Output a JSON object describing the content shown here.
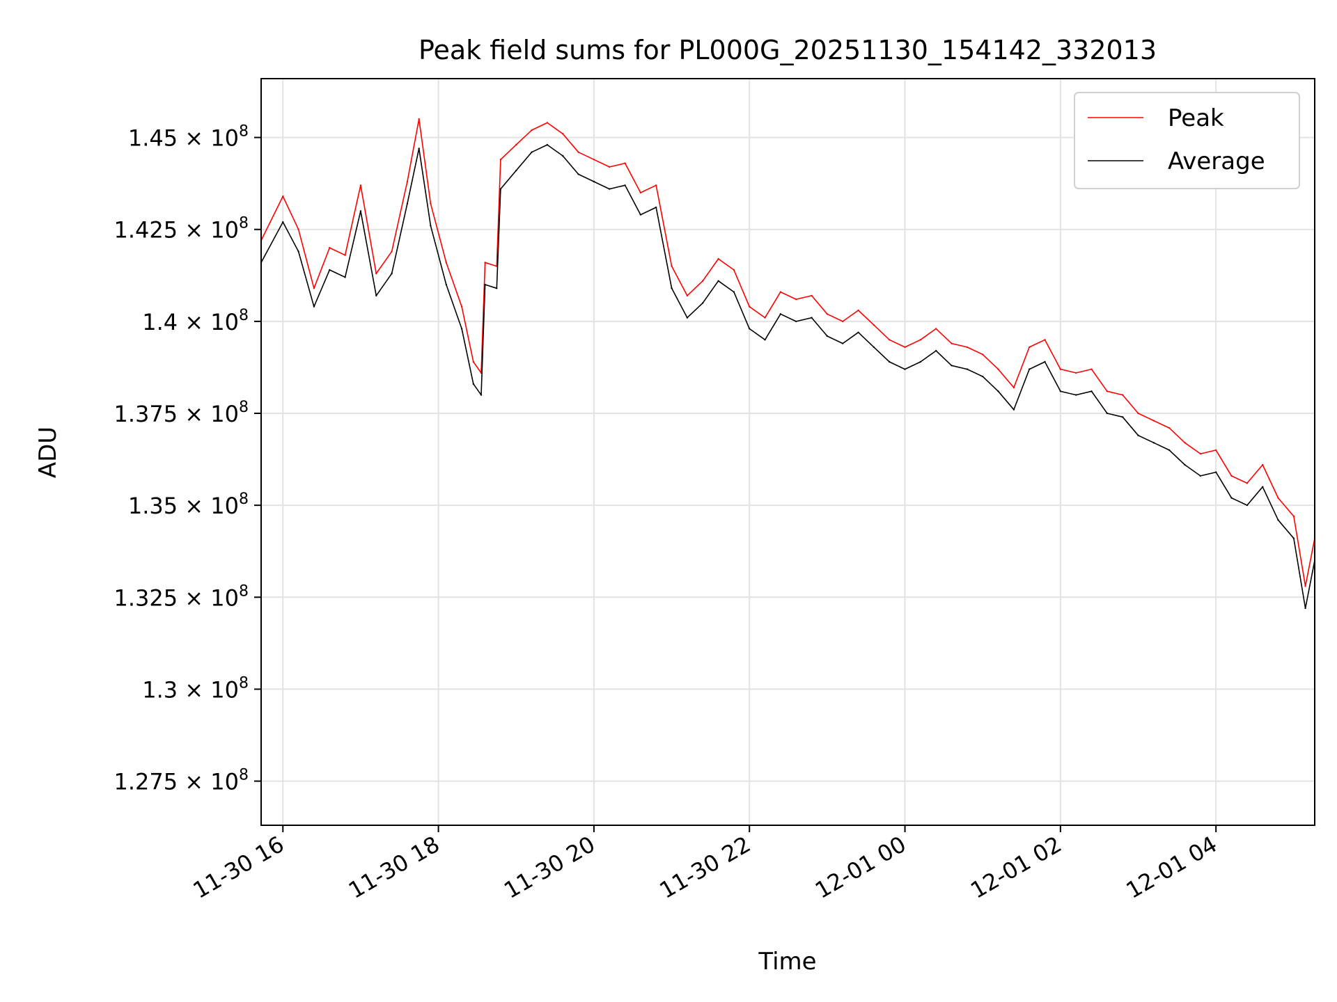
{
  "chart_data": {
    "type": "line",
    "title": "Peak field sums for PL000G_20251130_154142_332013",
    "xlabel": "Time",
    "ylabel": "ADU",
    "x_unit": "hours since 2025-11-30 00:00",
    "xlim": [
      15.72,
      29.27
    ],
    "ylim": [
      126300000,
      146600000
    ],
    "grid": true,
    "legend_position": "upper right",
    "x_ticks": [
      {
        "value": 16,
        "label": "11-30 16"
      },
      {
        "value": 18,
        "label": "11-30 18"
      },
      {
        "value": 20,
        "label": "11-30 20"
      },
      {
        "value": 22,
        "label": "11-30 22"
      },
      {
        "value": 24,
        "label": "12-01 00"
      },
      {
        "value": 26,
        "label": "12-01 02"
      },
      {
        "value": 28,
        "label": "12-01 04"
      }
    ],
    "y_ticks": [
      {
        "value": 127500000,
        "mantissa": "1.275",
        "base": "10",
        "exp": "8"
      },
      {
        "value": 130000000,
        "mantissa": "1.3",
        "base": "10",
        "exp": "8"
      },
      {
        "value": 132500000,
        "mantissa": "1.325",
        "base": "10",
        "exp": "8"
      },
      {
        "value": 135000000,
        "mantissa": "1.35",
        "base": "10",
        "exp": "8"
      },
      {
        "value": 137500000,
        "mantissa": "1.375",
        "base": "10",
        "exp": "8"
      },
      {
        "value": 140000000,
        "mantissa": "1.4",
        "base": "10",
        "exp": "8"
      },
      {
        "value": 142500000,
        "mantissa": "1.425",
        "base": "10",
        "exp": "8"
      },
      {
        "value": 145000000,
        "mantissa": "1.45",
        "base": "10",
        "exp": "8"
      }
    ],
    "series": [
      {
        "name": "Peak",
        "color": "#ff0000",
        "x": [
          15.72,
          16.0,
          16.2,
          16.4,
          16.6,
          16.8,
          17.0,
          17.2,
          17.4,
          17.6,
          17.75,
          17.9,
          18.1,
          18.3,
          18.45,
          18.55,
          18.6,
          18.75,
          18.8,
          19.0,
          19.2,
          19.4,
          19.6,
          19.8,
          20.0,
          20.2,
          20.4,
          20.6,
          20.8,
          21.0,
          21.2,
          21.4,
          21.6,
          21.8,
          22.0,
          22.2,
          22.4,
          22.6,
          22.8,
          23.0,
          23.2,
          23.4,
          23.6,
          23.8,
          24.0,
          24.2,
          24.4,
          24.6,
          24.8,
          25.0,
          25.2,
          25.4,
          25.6,
          25.8,
          26.0,
          26.2,
          26.4,
          26.6,
          26.8,
          27.0,
          27.2,
          27.4,
          27.6,
          27.8,
          28.0,
          28.2,
          28.4,
          28.6,
          28.8,
          29.0,
          29.15,
          29.27
        ],
        "values": [
          142200000,
          143400000,
          142500000,
          140900000,
          142000000,
          141800000,
          143700000,
          141300000,
          141900000,
          143800000,
          145500000,
          143200000,
          141600000,
          140400000,
          138900000,
          138600000,
          141600000,
          141500000,
          144400000,
          144800000,
          145200000,
          145400000,
          145100000,
          144600000,
          144400000,
          144200000,
          144300000,
          143500000,
          143700000,
          141500000,
          140700000,
          141100000,
          141700000,
          141400000,
          140400000,
          140100000,
          140800000,
          140600000,
          140700000,
          140200000,
          140000000,
          140300000,
          139900000,
          139500000,
          139300000,
          139500000,
          139800000,
          139400000,
          139300000,
          139100000,
          138700000,
          138200000,
          139300000,
          139500000,
          138700000,
          138600000,
          138700000,
          138100000,
          138000000,
          137500000,
          137300000,
          137100000,
          136700000,
          136400000,
          136500000,
          135800000,
          135600000,
          136100000,
          135200000,
          134700000,
          132800000,
          134100000
        ]
      },
      {
        "name": "Average",
        "color": "#000000",
        "x": [
          15.72,
          16.0,
          16.2,
          16.4,
          16.6,
          16.8,
          17.0,
          17.2,
          17.4,
          17.6,
          17.75,
          17.9,
          18.1,
          18.3,
          18.45,
          18.55,
          18.6,
          18.75,
          18.8,
          19.0,
          19.2,
          19.4,
          19.6,
          19.8,
          20.0,
          20.2,
          20.4,
          20.6,
          20.8,
          21.0,
          21.2,
          21.4,
          21.6,
          21.8,
          22.0,
          22.2,
          22.4,
          22.6,
          22.8,
          23.0,
          23.2,
          23.4,
          23.6,
          23.8,
          24.0,
          24.2,
          24.4,
          24.6,
          24.8,
          25.0,
          25.2,
          25.4,
          25.6,
          25.8,
          26.0,
          26.2,
          26.4,
          26.6,
          26.8,
          27.0,
          27.2,
          27.4,
          27.6,
          27.8,
          28.0,
          28.2,
          28.4,
          28.6,
          28.8,
          29.0,
          29.15,
          29.27
        ],
        "values": [
          141600000,
          142700000,
          141900000,
          140400000,
          141400000,
          141200000,
          143000000,
          140700000,
          141300000,
          143200000,
          144700000,
          142600000,
          141000000,
          139800000,
          138300000,
          138000000,
          141000000,
          140900000,
          143600000,
          144100000,
          144600000,
          144800000,
          144500000,
          144000000,
          143800000,
          143600000,
          143700000,
          142900000,
          143100000,
          140900000,
          140100000,
          140500000,
          141100000,
          140800000,
          139800000,
          139500000,
          140200000,
          140000000,
          140100000,
          139600000,
          139400000,
          139700000,
          139300000,
          138900000,
          138700000,
          138900000,
          139200000,
          138800000,
          138700000,
          138500000,
          138100000,
          137600000,
          138700000,
          138900000,
          138100000,
          138000000,
          138100000,
          137500000,
          137400000,
          136900000,
          136700000,
          136500000,
          136100000,
          135800000,
          135900000,
          135200000,
          135000000,
          135500000,
          134600000,
          134100000,
          132200000,
          133500000
        ]
      }
    ]
  }
}
